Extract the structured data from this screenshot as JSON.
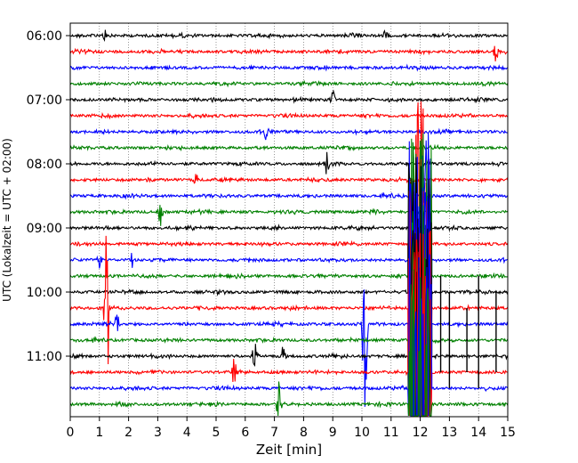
{
  "chart_data": {
    "type": "line",
    "title": "",
    "xlabel": "Zeit  [min]",
    "ylabel": "UTC (Lokalzeit = UTC + 02:00)",
    "xlim": [
      0,
      15
    ],
    "x_ticks": [
      "0",
      "1",
      "2",
      "3",
      "4",
      "5",
      "6",
      "7",
      "8",
      "9",
      "10",
      "11",
      "12",
      "13",
      "14",
      "15"
    ],
    "y_tick_labels": [
      "06:00",
      "07:00",
      "08:00",
      "09:00",
      "10:00",
      "11:00"
    ],
    "row_interval_min": 15,
    "rows_per_hour": 4,
    "start_time": "06:00",
    "row_count": 24,
    "grid": "vertical dotted at each minute",
    "legend": "none",
    "series": [
      {
        "start": "06:00",
        "color": "#000000"
      },
      {
        "start": "06:15",
        "color": "#ff0000"
      },
      {
        "start": "06:30",
        "color": "#0000ff"
      },
      {
        "start": "06:45",
        "color": "#008000"
      },
      {
        "start": "07:00",
        "color": "#000000"
      },
      {
        "start": "07:15",
        "color": "#ff0000"
      },
      {
        "start": "07:30",
        "color": "#0000ff"
      },
      {
        "start": "07:45",
        "color": "#008000"
      },
      {
        "start": "08:00",
        "color": "#000000"
      },
      {
        "start": "08:15",
        "color": "#ff0000"
      },
      {
        "start": "08:30",
        "color": "#0000ff"
      },
      {
        "start": "08:45",
        "color": "#008000"
      },
      {
        "start": "09:00",
        "color": "#000000"
      },
      {
        "start": "09:15",
        "color": "#ff0000"
      },
      {
        "start": "09:30",
        "color": "#0000ff"
      },
      {
        "start": "09:45",
        "color": "#008000"
      },
      {
        "start": "10:00",
        "color": "#000000"
      },
      {
        "start": "10:15",
        "color": "#ff0000"
      },
      {
        "start": "10:30",
        "color": "#0000ff"
      },
      {
        "start": "10:45",
        "color": "#008000"
      },
      {
        "start": "11:00",
        "color": "#000000"
      },
      {
        "start": "11:15",
        "color": "#ff0000"
      },
      {
        "start": "11:30",
        "color": "#0000ff"
      },
      {
        "start": "11:45",
        "color": "#008000"
      }
    ],
    "events": [
      {
        "row": 0,
        "t": 1.15,
        "amp": 0.7
      },
      {
        "row": 0,
        "t": 10.8,
        "amp": 0.4
      },
      {
        "row": 1,
        "t": 14.6,
        "amp": 0.8
      },
      {
        "row": 4,
        "t": 9.0,
        "amp": 0.6
      },
      {
        "row": 6,
        "t": 6.7,
        "amp": 0.5
      },
      {
        "row": 8,
        "t": 8.8,
        "amp": 0.8
      },
      {
        "row": 9,
        "t": 4.3,
        "amp": 0.5
      },
      {
        "row": 11,
        "t": 3.1,
        "amp": 0.9
      },
      {
        "row": 14,
        "t": 1.0,
        "amp": 0.6
      },
      {
        "row": 14,
        "t": 2.1,
        "amp": 0.6
      },
      {
        "row": 17,
        "t": 1.25,
        "amp": 5.9
      },
      {
        "row": 18,
        "t": 10.1,
        "amp": 6.2
      },
      {
        "row": 18,
        "t": 1.6,
        "amp": 0.9
      },
      {
        "row": 20,
        "t": 6.3,
        "amp": 1.5
      },
      {
        "row": 20,
        "t": 7.3,
        "amp": 0.7
      },
      {
        "row": 21,
        "t": 5.6,
        "amp": 1.2
      },
      {
        "row": 23,
        "t": 7.15,
        "amp": 1.4
      }
    ],
    "burst": {
      "start_row": 13,
      "end_row": 23,
      "t_start": 11.6,
      "t_end": 12.4
    }
  }
}
